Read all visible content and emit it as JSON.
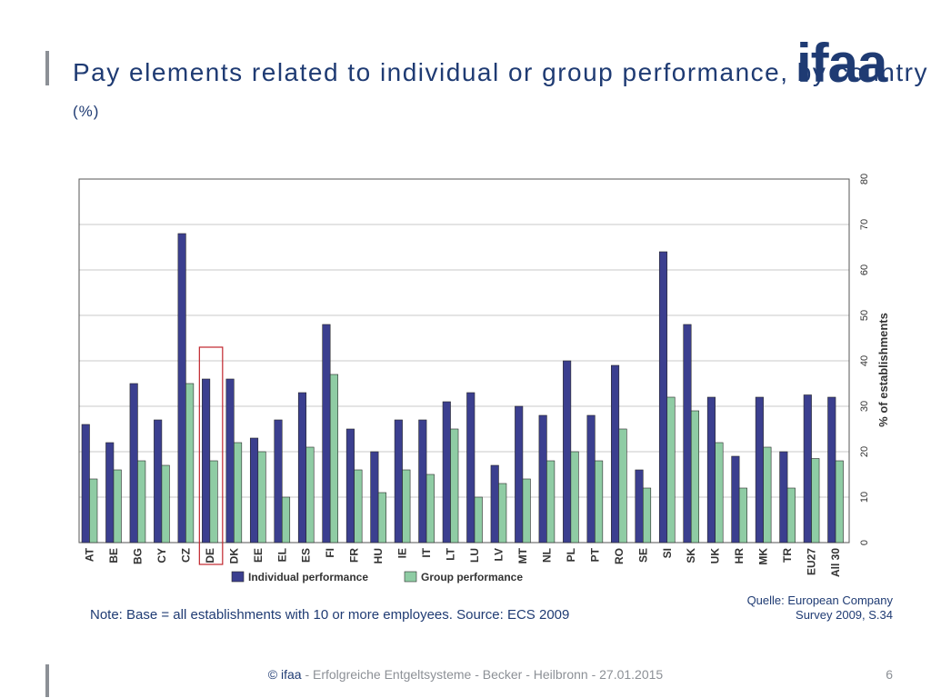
{
  "slide": {
    "title_main": "Pay elements related to individual or group performance, by country",
    "title_unit": "(%)",
    "logo": "ifaa",
    "note": "Note: Base = all establishments with 10 or more employees. Source: ECS 2009",
    "source_line1": "Quelle: European Company",
    "source_line2": "Survey 2009, S.34",
    "footer_brand": "© ifaa",
    "footer_text": " - Erfolgreiche Entgeltsysteme - Becker - Heilbronn - 27.01.2015",
    "page_number": "6"
  },
  "chart_data": {
    "type": "bar",
    "categories": [
      "AT",
      "BE",
      "BG",
      "CY",
      "CZ",
      "DE",
      "DK",
      "EE",
      "EL",
      "ES",
      "FI",
      "FR",
      "HU",
      "IE",
      "IT",
      "LT",
      "LU",
      "LV",
      "MT",
      "NL",
      "PL",
      "PT",
      "RO",
      "SE",
      "SI",
      "SK",
      "UK",
      "HR",
      "MK",
      "TR",
      "EU27",
      "All 30"
    ],
    "series": [
      {
        "name": "Individual performance",
        "color": "#3b3f8f",
        "values": [
          26,
          22,
          35,
          27,
          68,
          36,
          36,
          23,
          27,
          33,
          48,
          25,
          20,
          27,
          27,
          31,
          33,
          17,
          30,
          28,
          40,
          28,
          39,
          16,
          64,
          48,
          32,
          19,
          32,
          20,
          32.5,
          32
        ]
      },
      {
        "name": "Group performance",
        "color": "#8fcca4",
        "values": [
          14,
          16,
          18,
          17,
          35,
          18,
          22,
          20,
          10,
          21,
          37,
          16,
          11,
          16,
          15,
          25,
          10,
          13,
          14,
          18,
          20,
          18,
          25,
          12,
          32,
          29,
          22,
          12,
          21,
          12,
          18.5,
          18
        ]
      }
    ],
    "ylabel": "% of establishments",
    "ylim": [
      0,
      80
    ],
    "yticks": [
      0,
      10,
      20,
      30,
      40,
      50,
      60,
      70,
      80
    ],
    "y_axis_position": "right",
    "grid": true,
    "legend_position": "bottom-left",
    "highlight_category": "DE",
    "highlight_color": "#c0262d"
  }
}
